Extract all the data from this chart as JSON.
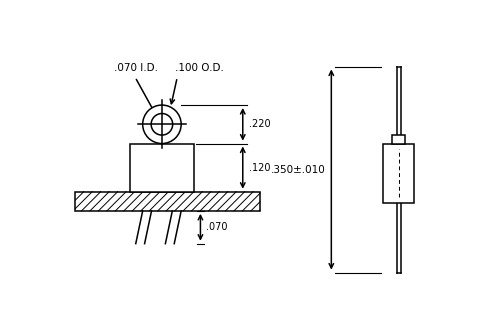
{
  "bg_color": "#ffffff",
  "line_color": "#000000",
  "fig_width": 5.0,
  "fig_height": 3.3,
  "dpi": 100,
  "annotations": {
    "id_label": ".070 I.D.",
    "od_label": ".100 O.D.",
    "dim_220": ".220",
    "dim_120": ".120",
    "dim_070": ".070",
    "dim_350": ".350±.010"
  }
}
